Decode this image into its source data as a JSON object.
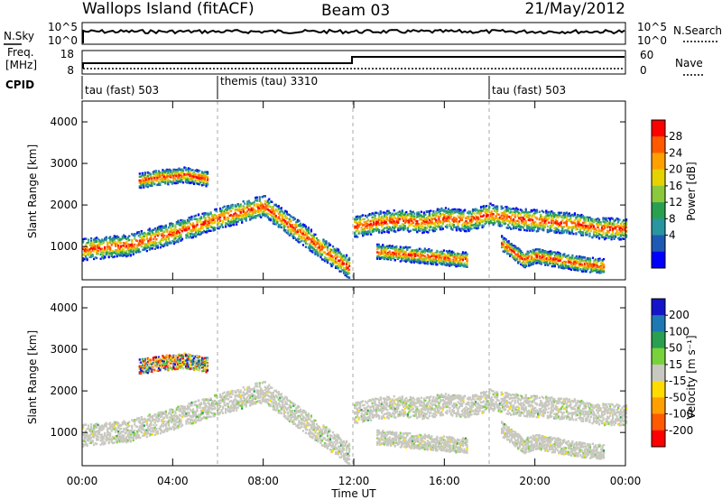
{
  "header": {
    "station": "Wallops Island (fitACF)",
    "beam": "Beam 03",
    "date": "21/May/2012"
  },
  "strip_nsky": {
    "left_label": "N.Sky",
    "left_ticks": [
      "10^5",
      "10^0"
    ],
    "right_ticks": [
      "10^5",
      "10^0"
    ],
    "right_label": "N.Search"
  },
  "strip_freq": {
    "left_label_1": "Freq.",
    "left_label_2": "[MHz]",
    "left_ticks": [
      "18",
      "8"
    ],
    "right_ticks": [
      "60",
      "0"
    ],
    "right_label": "Nave"
  },
  "cpid": {
    "label": "CPID",
    "segments": [
      {
        "label": "tau (fast) 503",
        "start_hour": 0
      },
      {
        "label": "themis (tau) 3310",
        "start_hour": 6
      },
      {
        "label": "tau (fast) 503",
        "start_hour": 18
      }
    ]
  },
  "power_colorbar": {
    "label": "Power [dB]",
    "ticks": [
      "28",
      "24",
      "20",
      "16",
      "12",
      "8",
      "4"
    ],
    "colors": [
      "#ff0000",
      "#ff5a00",
      "#ffa000",
      "#e6d200",
      "#8cc83c",
      "#28a050",
      "#2896a0",
      "#1e5ab4",
      "#0000ff"
    ]
  },
  "velocity_colorbar": {
    "label": "Velocity [m s⁻¹]",
    "ticks": [
      "200",
      "100",
      "50",
      "15",
      "-15",
      "-50",
      "-100",
      "-200"
    ],
    "colors": [
      "#1414c8",
      "#1e78b4",
      "#28a050",
      "#78d23c",
      "#c8c8c0",
      "#ffdc00",
      "#ffa000",
      "#ff5a00",
      "#ff0000"
    ]
  },
  "panels": {
    "ylabel": "Slant Range [km]",
    "yticks": [
      "4000",
      "3000",
      "2000",
      "1000"
    ],
    "xlabel": "Time UT",
    "xticks": [
      "00:00",
      "04:00",
      "08:00",
      "12:00",
      "16:00",
      "20:00",
      "00:00"
    ]
  },
  "chart_data": {
    "type": "heatmap",
    "x_unit": "hours UT",
    "xlim": [
      0,
      24
    ],
    "ylim": [
      200,
      4500
    ],
    "echo_bands": [
      {
        "t": [
          0,
          2,
          4,
          6,
          7,
          8,
          9,
          10,
          11,
          11.8
        ],
        "range": [
          950,
          1050,
          1350,
          1700,
          1850,
          2000,
          1600,
          1200,
          800,
          500
        ]
      },
      {
        "t": [
          12,
          13,
          14,
          15,
          16,
          17,
          18,
          19,
          20,
          21,
          22,
          23,
          24
        ],
        "range": [
          1500,
          1600,
          1650,
          1600,
          1700,
          1650,
          1800,
          1700,
          1650,
          1600,
          1550,
          1450,
          1450
        ]
      },
      {
        "t": [
          2.5,
          3,
          3.5,
          4,
          4.5,
          5,
          5.5
        ],
        "range": [
          2600,
          2650,
          2700,
          2700,
          2750,
          2700,
          2650
        ]
      },
      {
        "t": [
          13,
          14,
          15,
          16,
          17
        ],
        "range": [
          900,
          850,
          800,
          750,
          700
        ]
      },
      {
        "t": [
          18.5,
          19,
          19.5,
          20,
          22,
          23
        ],
        "range": [
          1100,
          900,
          700,
          800,
          600,
          550
        ]
      }
    ]
  }
}
